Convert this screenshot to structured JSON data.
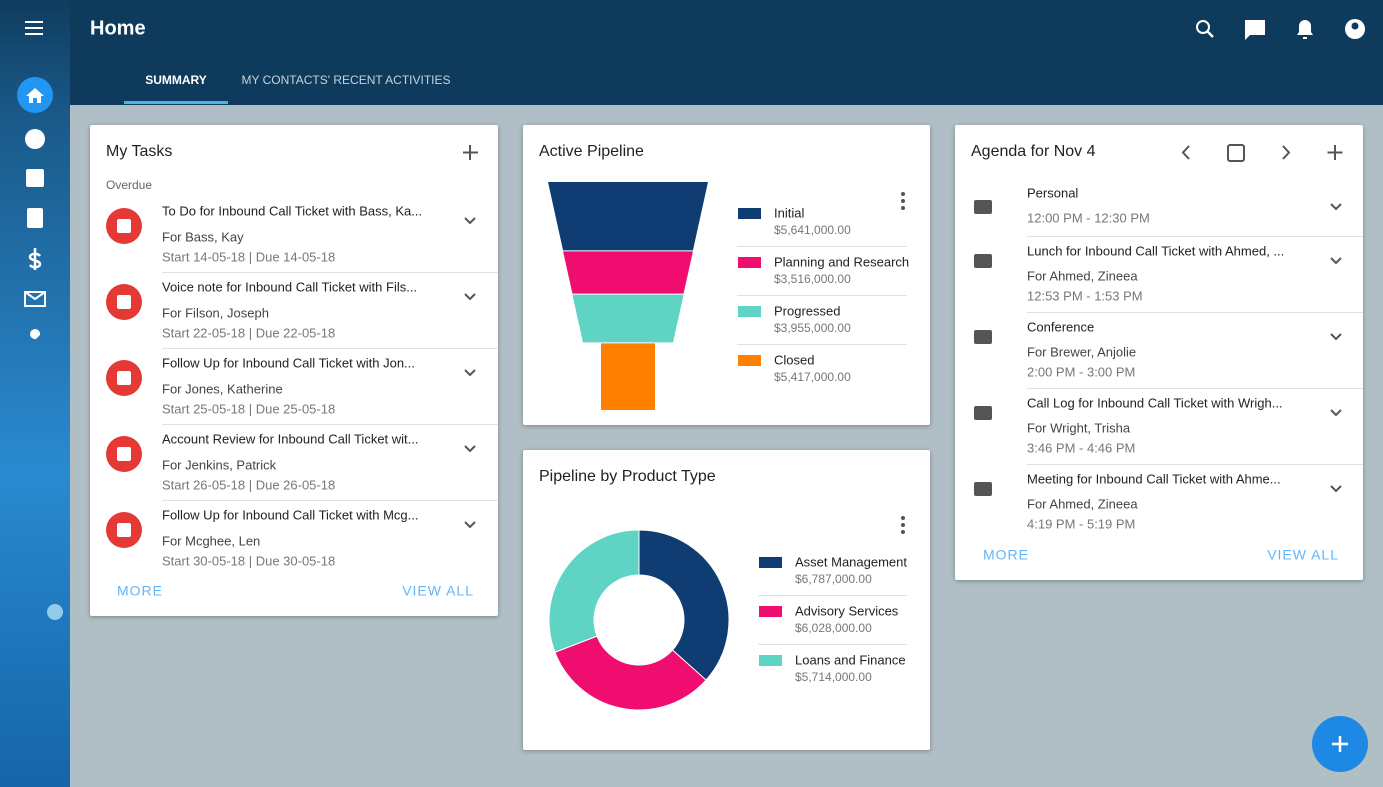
{
  "header": {
    "title": "Home"
  },
  "tabs": [
    "SUMMARY",
    "MY CONTACTS' RECENT ACTIVITIES"
  ],
  "tasks": {
    "title": "My Tasks",
    "section": "Overdue",
    "items": [
      {
        "title": "To Do for Inbound Call Ticket with Bass, Ka...",
        "for": "For Bass, Kay",
        "dates": "Start 14-05-18 | Due 14-05-18"
      },
      {
        "title": "Voice note for Inbound Call Ticket with Fils...",
        "for": "For Filson, Joseph",
        "dates": "Start 22-05-18 | Due 22-05-18"
      },
      {
        "title": "Follow Up for Inbound Call Ticket with Jon...",
        "for": "For Jones, Katherine",
        "dates": "Start 25-05-18 | Due 25-05-18"
      },
      {
        "title": "Account Review for Inbound Call Ticket wit...",
        "for": "For Jenkins, Patrick",
        "dates": "Start 26-05-18 | Due 26-05-18"
      },
      {
        "title": "Follow Up for Inbound Call Ticket with Mcg...",
        "for": "For Mcghee, Len",
        "dates": "Start 30-05-18 | Due 30-05-18"
      }
    ],
    "more": "MORE",
    "view_all": "VIEW ALL"
  },
  "chart_data": [
    {
      "type": "funnel",
      "title": "Active Pipeline",
      "categories": [
        "Initial",
        "Planning and Research",
        "Progressed",
        "Closed"
      ],
      "values": [
        5641000,
        3516000,
        3955000,
        5417000
      ],
      "value_labels": [
        "$5,641,000.00",
        "$3,516,000.00",
        "$3,955,000.00",
        "$5,417,000.00"
      ],
      "colors": [
        "#0f3c73",
        "#ef0e70",
        "#5fd3c4",
        "#ff8000"
      ]
    },
    {
      "type": "donut",
      "title": "Pipeline by Product Type",
      "categories": [
        "Asset Management",
        "Advisory Services",
        "Loans and Finance"
      ],
      "values": [
        6787000,
        6028000,
        5714000
      ],
      "value_labels": [
        "$6,787,000.00",
        "$6,028,000.00",
        "$5,714,000.00"
      ],
      "colors": [
        "#0f3c73",
        "#ef0e70",
        "#5fd3c4"
      ]
    }
  ],
  "agenda": {
    "title": "Agenda for Nov 4",
    "items": [
      {
        "title": "Personal",
        "time": "12:00 PM - 12:30 PM"
      },
      {
        "title": "Lunch for Inbound Call Ticket with Ahmed, ...",
        "for": "For Ahmed, Zineea",
        "time": "12:53 PM - 1:53 PM"
      },
      {
        "title": "Conference",
        "for": "For Brewer, Anjolie",
        "time": "2:00 PM - 3:00 PM"
      },
      {
        "title": "Call Log for Inbound Call Ticket with Wrigh...",
        "for": "For Wright, Trisha",
        "time": "3:46 PM - 4:46 PM"
      },
      {
        "title": "Meeting for Inbound Call Ticket with Ahme...",
        "for": "For Ahmed, Zineea",
        "time": "4:19 PM - 5:19 PM"
      }
    ],
    "more": "MORE",
    "view_all": "VIEW ALL"
  }
}
